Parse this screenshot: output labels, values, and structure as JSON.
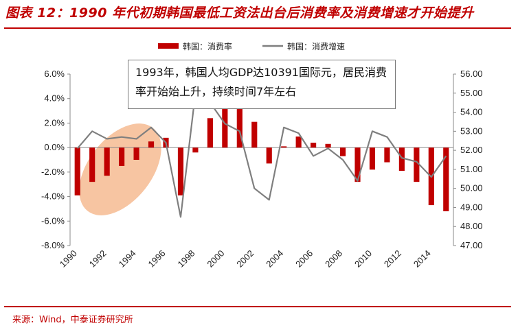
{
  "title": "图表 12：1990 年代初期韩国最低工资法出台后消费率及消费增速才开始提升",
  "source": "来源：Wind，中泰证券研究所",
  "annotation": "1993年，韩国人均GDP达10391国际元，居民消费率开始始上升，持续时间7年左右",
  "colors": {
    "bar": "#c00000",
    "line": "#7f7f7f",
    "accent": "#c00000",
    "highlight": "#f4b183"
  },
  "chart_data": {
    "type": "bar+line",
    "x": [
      1990,
      1991,
      1992,
      1993,
      1994,
      1995,
      1996,
      1997,
      1998,
      1999,
      2000,
      2001,
      2002,
      2003,
      2004,
      2005,
      2006,
      2007,
      2008,
      2009,
      2010,
      2011,
      2012,
      2013,
      2014,
      2015
    ],
    "x_tick_labels": [
      "1990",
      "1992",
      "1994",
      "1996",
      "1998",
      "2000",
      "2002",
      "2004",
      "2006",
      "2008",
      "2010",
      "2012",
      "2014"
    ],
    "left_axis": {
      "ylim": [
        -8,
        6
      ],
      "ticks": [
        "-8.0%",
        "-6.0%",
        "-4.0%",
        "-2.0%",
        "0.0%",
        "2.0%",
        "4.0%",
        "6.0%"
      ]
    },
    "right_axis": {
      "ylim": [
        47,
        56
      ],
      "ticks": [
        "47.00",
        "48.00",
        "49.00",
        "50.00",
        "51.00",
        "52.00",
        "53.00",
        "54.00",
        "55.00",
        "56.00"
      ]
    },
    "series": [
      {
        "name": "韩国：消费率",
        "kind": "bar",
        "axis": "left",
        "values": [
          -3.9,
          -2.8,
          -2.3,
          -1.5,
          -1.0,
          0.5,
          0.8,
          -3.9,
          -0.4,
          2.4,
          4.0,
          5.1,
          2.1,
          -1.3,
          0.1,
          0.9,
          0.4,
          0.3,
          -0.7,
          -2.8,
          -1.8,
          -1.2,
          -1.9,
          -2.8,
          -4.7,
          -5.2
        ]
      },
      {
        "name": "韩国：消费增速",
        "kind": "line",
        "axis": "right",
        "values": [
          52.1,
          53.0,
          52.6,
          52.7,
          52.6,
          53.2,
          52.4,
          48.5,
          55.0,
          54.5,
          53.4,
          53.0,
          50.0,
          49.4,
          53.2,
          52.9,
          51.7,
          52.1,
          51.5,
          50.4,
          53.0,
          52.7,
          51.6,
          51.4,
          50.6,
          51.7
        ]
      }
    ]
  }
}
